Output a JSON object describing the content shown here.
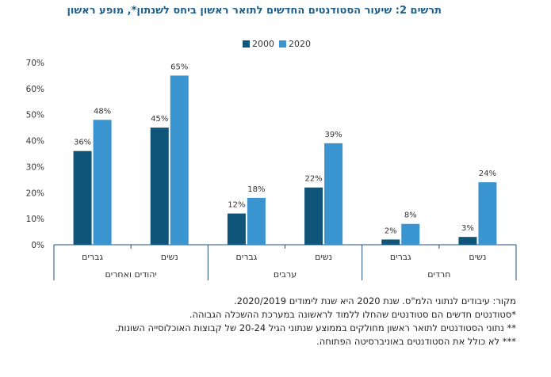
{
  "title": "תרשים 2: שיעור הסטודנטים החדשים לתואר ראשון ביחס לשנתון*, מופע ראשון",
  "colors": {
    "s2000": "#0f5579",
    "s2020": "#3a94d0",
    "axis": "#1f4e79",
    "grid": "#d9d9d9",
    "text": "#333333"
  },
  "chart_data": {
    "type": "bar",
    "title": "תרשים 2: שיעור הסטודנטים החדשים לתואר ראשון ביחס לשנתון*, מופע ראשון",
    "ylim": [
      0,
      70
    ],
    "yticks": [
      "0%",
      "10%",
      "20%",
      "30%",
      "40%",
      "50%",
      "60%",
      "70%"
    ],
    "ytick_values": [
      0,
      10,
      20,
      30,
      40,
      50,
      60,
      70
    ],
    "legend": [
      "2000",
      "2020"
    ],
    "groups": [
      {
        "label": "יהודים ואחרים",
        "categories": [
          {
            "label": "גברים",
            "v2000": 36,
            "v2020": 48,
            "l2000": "36%",
            "l2020": "48%"
          },
          {
            "label": "נשים",
            "v2000": 45,
            "v2020": 65,
            "l2000": "45%",
            "l2020": "65%"
          }
        ]
      },
      {
        "label": "ערבים",
        "categories": [
          {
            "label": "גברים",
            "v2000": 12,
            "v2020": 18,
            "l2000": "12%",
            "l2020": "18%"
          },
          {
            "label": "נשים",
            "v2000": 22,
            "v2020": 39,
            "l2000": "22%",
            "l2020": "39%"
          }
        ]
      },
      {
        "label": "חרדים",
        "categories": [
          {
            "label": "גברים",
            "v2000": 2,
            "v2020": 8,
            "l2000": "2%",
            "l2020": "8%"
          },
          {
            "label": "נשים",
            "v2000": 3,
            "v2020": 24,
            "l2000": "3%",
            "l2020": "24%"
          }
        ]
      }
    ]
  },
  "notes": [
    "מקור: עיבודים לנתוני הלמ\"ס. שנת 2020 היא שנת לימודים 2020/2019.",
    "*סטודנטים חדשים הם סטודנטים שהחלו ללמוד לראשונה במערכת ההשכלה הגבוהה.",
    "** נתוני הסטודנטים לתואר ראשון מחולקים בממוצע שנתוני הגיל 20-24 של קבוצות האוכלוסייה השונות.",
    "*** לא כולל את הסטודנטים באוניברסיטה הפתוחה."
  ]
}
